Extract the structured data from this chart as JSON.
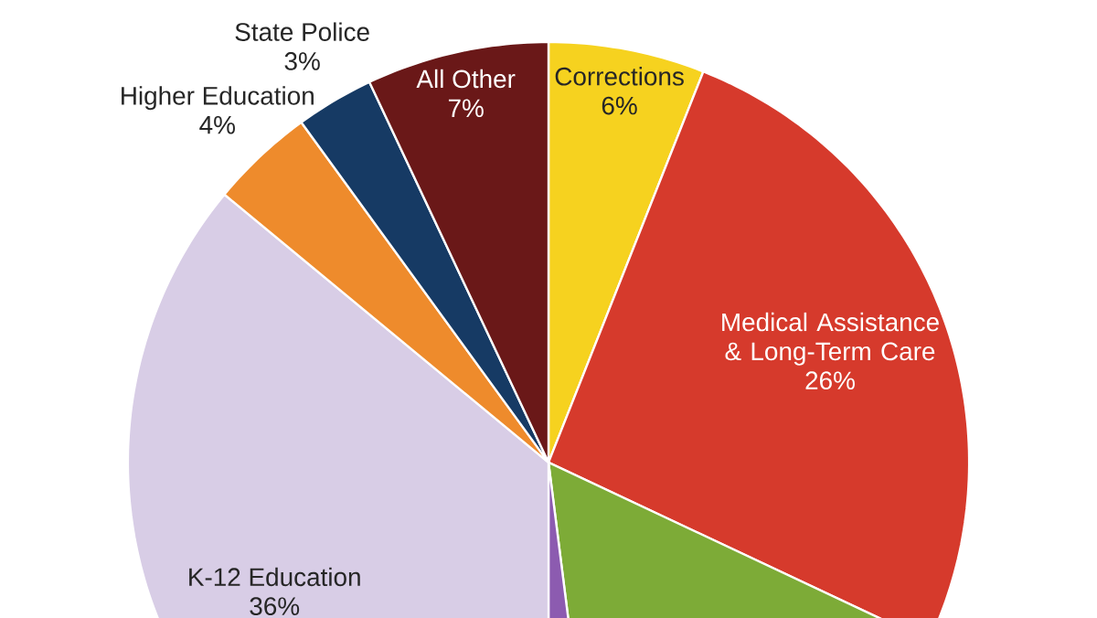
{
  "chart_data": {
    "type": "pie",
    "categories": [
      "Corrections",
      "Medical Assistance & Long-Term Care",
      null,
      null,
      "K-12 Education",
      "Higher Education",
      "State Police",
      "All Other"
    ],
    "values": [
      6,
      26,
      16,
      2,
      36,
      4,
      3,
      7
    ],
    "value_labels": [
      "6%",
      "26%",
      null,
      null,
      "36%",
      "4%",
      "3%",
      "7%"
    ],
    "colors": [
      "#f6d21f",
      "#d63a2c",
      "#7dab37",
      "#8c5bb0",
      "#d8cde6",
      "#ee8b2c",
      "#163a64",
      "#6a1818"
    ]
  }
}
